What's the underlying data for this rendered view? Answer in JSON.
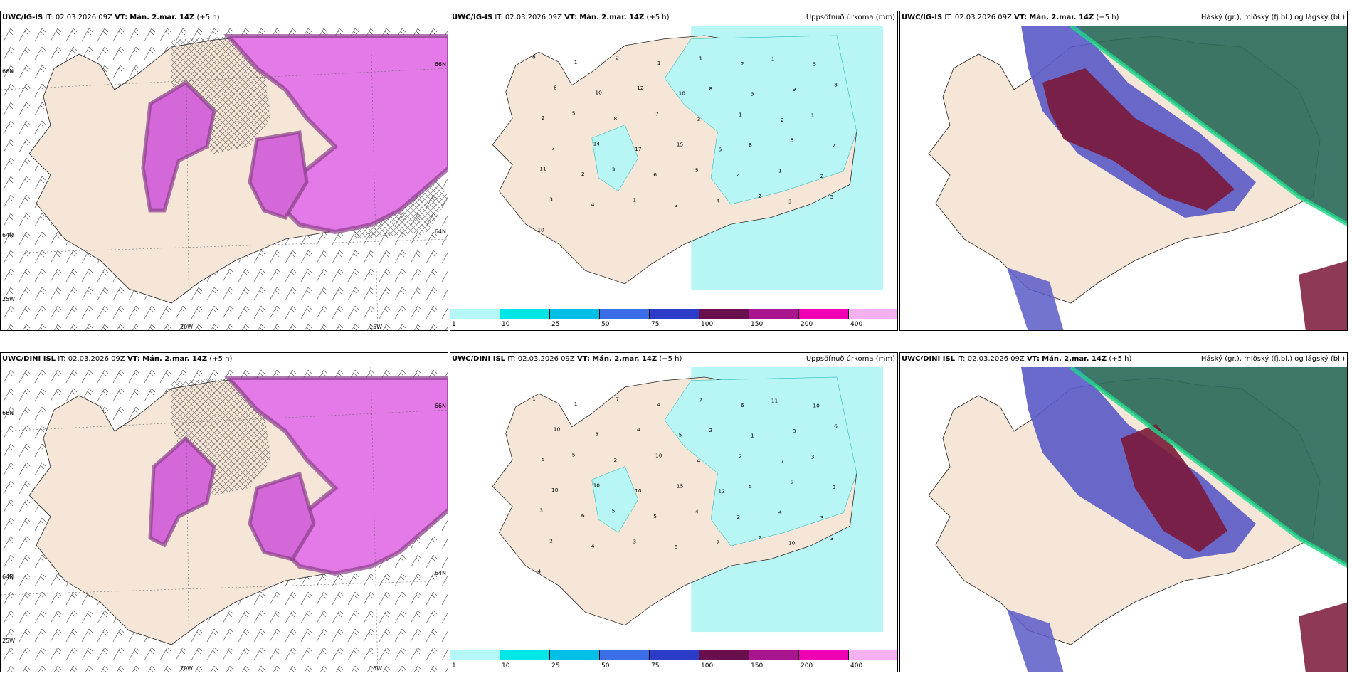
{
  "rows": [
    {
      "model": "UWC/IG-IS",
      "it_label": "IT:",
      "it_value": "02.03.2026 09Z",
      "vt_label": "VT:",
      "vt_value": "Mán. 2.mar. 14Z",
      "lead": "(+5 h)",
      "precip_title": "Uppsöfnuð úrkoma (mm)",
      "cloud_title": "Háský (gr.), miðský (fj.bl.) og lágský (bl.)",
      "precip_values": [
        "6",
        "1",
        "2",
        "1",
        "1",
        "2",
        "1",
        "5",
        "6",
        "10",
        "12",
        "10",
        "8",
        "3",
        "9",
        "8",
        "2",
        "5",
        "8",
        "7",
        "3",
        "1",
        "2",
        "1",
        "7",
        "14",
        "17",
        "15",
        "6",
        "8",
        "5",
        "7",
        "11",
        "2",
        "3",
        "6",
        "5",
        "4",
        "1",
        "2",
        "3",
        "4",
        "1",
        "3",
        "4",
        "2",
        "3",
        "5",
        "10"
      ]
    },
    {
      "model": "UWC/DINI ISL",
      "it_label": "IT:",
      "it_value": "02.03.2026 09Z",
      "vt_label": "VT:",
      "vt_value": "Mán. 2.mar. 14Z",
      "lead": "(+5 h)",
      "precip_title": "Uppsöfnuð úrkoma (mm)",
      "cloud_title": "Háský (gr.), miðský (fj.bl.) og lágský (bl.)",
      "precip_values": [
        "1",
        "1",
        "7",
        "4",
        "7",
        "6",
        "11",
        "10",
        "10",
        "8",
        "4",
        "5",
        "2",
        "1",
        "8",
        "6",
        "5",
        "5",
        "2",
        "10",
        "4",
        "2",
        "7",
        "3",
        "10",
        "10",
        "10",
        "15",
        "12",
        "5",
        "9",
        "3",
        "3",
        "6",
        "5",
        "5",
        "4",
        "2",
        "4",
        "3",
        "2",
        "4",
        "3",
        "5",
        "2",
        "2",
        "10",
        "3",
        "4"
      ]
    }
  ],
  "axis_labels": {
    "lat_66": "66N",
    "lat_64": "64N",
    "lon_25": "25W",
    "lon_20": "20W",
    "lon_15": "15W"
  },
  "colorbar": {
    "ticks": [
      "1",
      "10",
      "25",
      "50",
      "75",
      "100",
      "150",
      "200",
      "400"
    ],
    "colors": [
      "#b5f7f7",
      "#00e6e6",
      "#00bfe6",
      "#3a6ee6",
      "#2a3cc8",
      "#6a0f4e",
      "#a8158c",
      "#f000b4",
      "#f5b0f0"
    ]
  },
  "colors": {
    "land": "#f5e6d8",
    "precip_cyan": "#b8f6f6",
    "snow_magenta": "#e47ae8",
    "snow_dark": "#8a3f8a",
    "high_cloud": "#2d6b5a",
    "mid_cloud": "#7a1838",
    "low_cloud": "#5a5ac8"
  }
}
